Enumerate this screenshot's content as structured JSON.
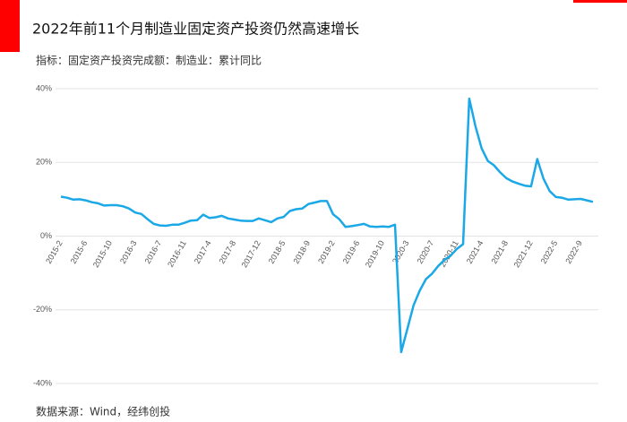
{
  "chart_data": {
    "type": "line",
    "title": "2022年前11个月制造业固定资产投资仍然高速增长",
    "subtitle": "指标：固定资产投资完成额：制造业：累计同比",
    "source": "数据来源：Wind，经纬创投",
    "categories": [
      "2015-2",
      null,
      null,
      null,
      "2015-6",
      null,
      null,
      null,
      "2015-10",
      null,
      null,
      null,
      "2016-3",
      null,
      null,
      null,
      "2016-7",
      null,
      null,
      null,
      "2016-11",
      null,
      null,
      null,
      "2017-4",
      null,
      null,
      null,
      "2017-8",
      null,
      null,
      null,
      "2017-12",
      null,
      null,
      null,
      "2018-5",
      null,
      null,
      null,
      "2018-9",
      null,
      null,
      null,
      "2019-2",
      null,
      null,
      null,
      "2019-6",
      null,
      null,
      null,
      "2019-10",
      null,
      null,
      null,
      "2020-3",
      null,
      null,
      null,
      "2020-7",
      null,
      null,
      null,
      "2020-11",
      null,
      null,
      null,
      "2021-4",
      null,
      null,
      null,
      "2021-8",
      null,
      null,
      null,
      "2021-12",
      null,
      null,
      null,
      "2022-5",
      null,
      null,
      null,
      "2022-9",
      null,
      null
    ],
    "series": [
      {
        "color": "#1ba8e6",
        "values": [
          10.7,
          10.4,
          9.9,
          10.0,
          9.7,
          9.2,
          8.9,
          8.3,
          8.4,
          8.4,
          8.1,
          7.5,
          6.4,
          6.0,
          4.6,
          3.3,
          2.9,
          2.8,
          3.1,
          3.1,
          3.6,
          4.2,
          4.3,
          5.8,
          4.9,
          5.1,
          5.5,
          4.8,
          4.5,
          4.2,
          4.1,
          4.1,
          4.8,
          4.3,
          3.8,
          4.8,
          5.2,
          6.8,
          7.3,
          7.5,
          8.7,
          9.1,
          9.5,
          9.5,
          5.9,
          4.6,
          2.5,
          2.7,
          3.0,
          3.3,
          2.6,
          2.5,
          2.6,
          2.5,
          3.1,
          -31.5,
          -25.2,
          -18.8,
          -14.8,
          -11.7,
          -10.2,
          -8.1,
          -6.5,
          -5.3,
          -3.5,
          -2.2,
          37.3,
          29.8,
          23.8,
          20.4,
          19.2,
          17.3,
          15.7,
          14.8,
          14.2,
          13.7,
          13.5,
          20.9,
          15.6,
          12.2,
          10.6,
          10.4,
          9.9,
          10.0,
          10.1,
          9.7,
          9.3
        ]
      }
    ],
    "ylim": [
      -40,
      40
    ],
    "yticks": [
      {
        "value": -40,
        "label": "-40%"
      },
      {
        "value": -20,
        "label": "-20%"
      },
      {
        "value": 0,
        "label": "0%"
      },
      {
        "value": 20,
        "label": "20%"
      },
      {
        "value": 40,
        "label": "40%"
      }
    ],
    "grid": true
  }
}
